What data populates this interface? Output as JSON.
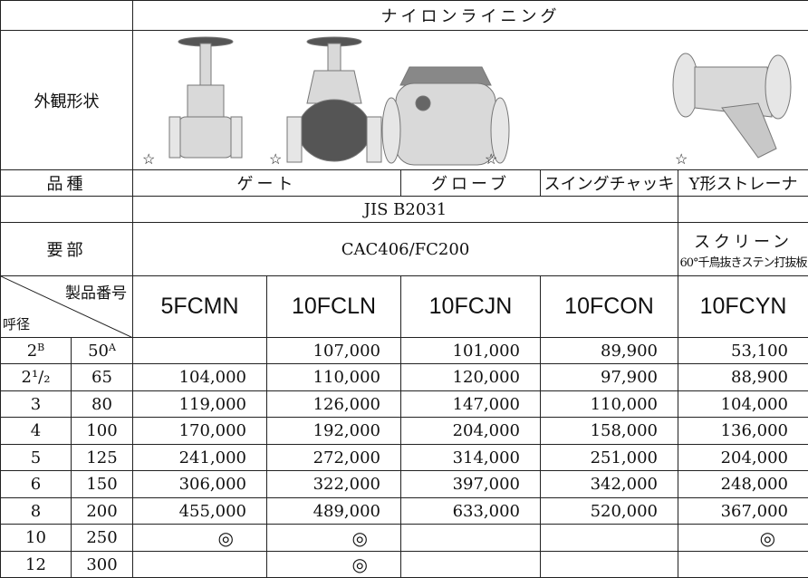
{
  "header": {
    "material": "ナイロンライニング"
  },
  "appearance": {
    "label": "外観形状",
    "marks": [
      "☆",
      "☆",
      "☆",
      "☆"
    ]
  },
  "kind": {
    "label": "品種",
    "values": [
      "ゲート",
      "グローブ",
      "スイングチャッキ",
      "Y形ストレーナ"
    ]
  },
  "standard": {
    "value": "JIS B2031"
  },
  "main_part": {
    "label": "要部",
    "material": "CAC406/FC200",
    "screen": "スクリーン",
    "screen_note": "60°千鳥抜きステン打抜板"
  },
  "corner": {
    "top": "製品番号",
    "bottom": "呼径"
  },
  "products": [
    "5FCMN",
    "10FCLN",
    "10FCJN",
    "10FCON",
    "10FCYN"
  ],
  "rows": [
    {
      "inch": "2",
      "inch_unit": "B",
      "mm": "50",
      "mm_unit": "A",
      "prices": [
        null,
        "107,000",
        "101,000",
        "89,900",
        "53,100"
      ]
    },
    {
      "inch": "2¹/₂",
      "inch_unit": null,
      "mm": "65",
      "mm_unit": null,
      "prices": [
        "104,000",
        "110,000",
        "120,000",
        "97,900",
        "88,900"
      ]
    },
    {
      "inch": "3",
      "inch_unit": null,
      "mm": "80",
      "mm_unit": null,
      "prices": [
        "119,000",
        "126,000",
        "147,000",
        "110,000",
        "104,000"
      ]
    },
    {
      "inch": "4",
      "inch_unit": null,
      "mm": "100",
      "mm_unit": null,
      "prices": [
        "170,000",
        "192,000",
        "204,000",
        "158,000",
        "136,000"
      ]
    },
    {
      "inch": "5",
      "inch_unit": null,
      "mm": "125",
      "mm_unit": null,
      "prices": [
        "241,000",
        "272,000",
        "314,000",
        "251,000",
        "204,000"
      ]
    },
    {
      "inch": "6",
      "inch_unit": null,
      "mm": "150",
      "mm_unit": null,
      "prices": [
        "306,000",
        "322,000",
        "397,000",
        "342,000",
        "248,000"
      ]
    },
    {
      "inch": "8",
      "inch_unit": null,
      "mm": "200",
      "mm_unit": null,
      "prices": [
        "455,000",
        "489,000",
        "633,000",
        "520,000",
        "367,000"
      ]
    },
    {
      "inch": "10",
      "inch_unit": null,
      "mm": "250",
      "mm_unit": null,
      "prices": [
        "◎",
        "◎",
        null,
        null,
        "◎"
      ]
    },
    {
      "inch": "12",
      "inch_unit": null,
      "mm": "300",
      "mm_unit": null,
      "prices": [
        null,
        "◎",
        null,
        null,
        null
      ]
    }
  ]
}
